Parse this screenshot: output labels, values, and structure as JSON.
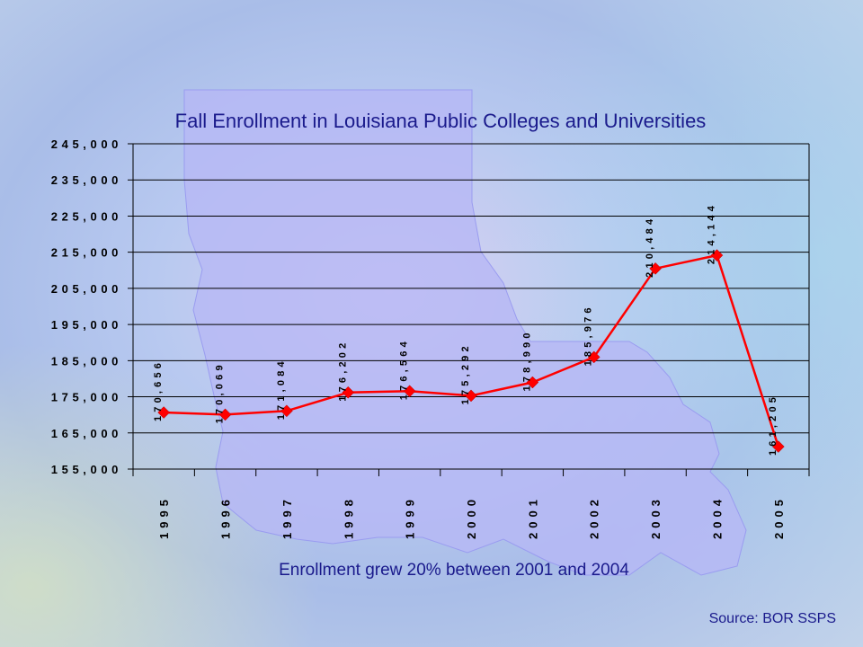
{
  "slide": {
    "title": "Fall Enrollment in Louisiana Public Colleges and Universities",
    "note": "Enrollment grew 20% between 2001 and 2004",
    "source": "Source: BOR SSPS"
  },
  "colors": {
    "series": "#ff0000",
    "marker": "#ff0000",
    "title_text": "#1a1a8c",
    "map_fill": "#b7b8f5"
  },
  "chart_data": {
    "type": "line",
    "title": "Fall Enrollment in Louisiana Public Colleges and Universities",
    "xlabel": "",
    "ylabel": "",
    "categories": [
      "1995",
      "1996",
      "1997",
      "1998",
      "1999",
      "2000",
      "2001",
      "2002",
      "2003",
      "2004",
      "2005"
    ],
    "series": [
      {
        "values": [
          170656,
          170069,
          171084,
          176202,
          176564,
          175292,
          178990,
          185976,
          210484,
          214144,
          161205
        ],
        "data_labels": [
          "170,656",
          "170,069",
          "171,084",
          "176,202",
          "176,564",
          "175,292",
          "178,990",
          "185,976",
          "210,484",
          "214,144",
          "161,205"
        ]
      }
    ],
    "ylim": [
      155000,
      245000
    ],
    "yticks": [
      "245,000",
      "235,000",
      "225,000",
      "215,000",
      "205,000",
      "195,000",
      "185,000",
      "175,000",
      "165,000",
      "155,000"
    ],
    "grid": "horizontal",
    "legend": "none",
    "marker": "diamond"
  }
}
